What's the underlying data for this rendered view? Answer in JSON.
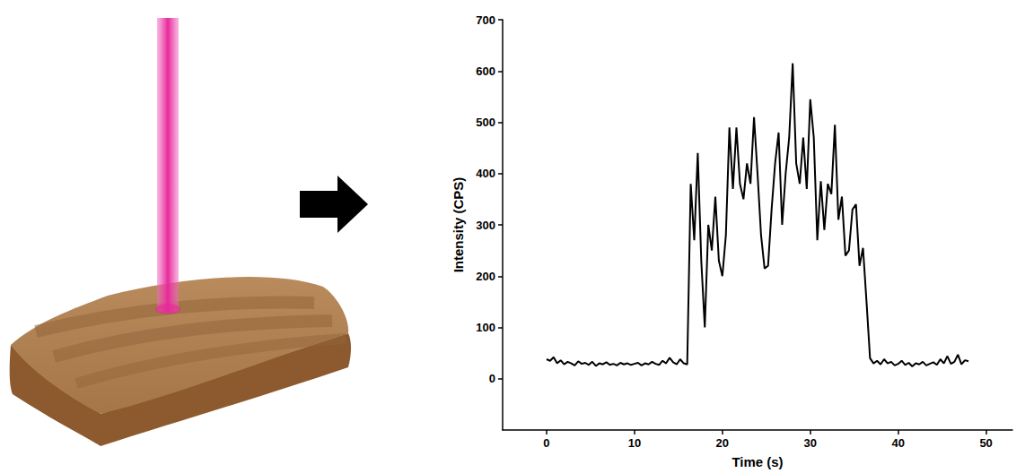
{
  "chart_data": {
    "type": "line",
    "xlabel": "Time (s)",
    "ylabel": "Intensity (CPS)",
    "color": "#000000",
    "x": [
      0,
      0.4,
      0.8,
      1.2,
      1.6,
      2,
      2.4,
      2.8,
      3.2,
      3.6,
      4,
      4.4,
      4.8,
      5.2,
      5.6,
      6,
      6.4,
      6.8,
      7.2,
      7.6,
      8,
      8.4,
      8.8,
      9.2,
      9.6,
      10,
      10.4,
      10.8,
      11.2,
      11.6,
      12,
      12.4,
      12.8,
      13.2,
      13.6,
      14,
      14.4,
      14.8,
      15.2,
      15.6,
      16,
      16.4,
      16.8,
      17.2,
      17.6,
      18,
      18.4,
      18.8,
      19.2,
      19.6,
      20,
      20.4,
      20.8,
      21.2,
      21.6,
      22,
      22.4,
      22.8,
      23.2,
      23.6,
      24,
      24.4,
      24.8,
      25.2,
      25.6,
      26,
      26.4,
      26.8,
      27.2,
      27.6,
      28,
      28.4,
      28.8,
      29.2,
      29.6,
      30,
      30.4,
      30.8,
      31.2,
      31.6,
      32,
      32.4,
      32.8,
      33.2,
      33.6,
      34,
      34.4,
      34.8,
      35.2,
      35.6,
      36,
      36.4,
      36.8,
      37.2,
      37.6,
      38,
      38.4,
      38.8,
      39.2,
      39.6,
      40,
      40.4,
      40.8,
      41.2,
      41.6,
      42,
      42.4,
      42.8,
      43.2,
      43.6,
      44,
      44.4,
      44.8,
      45.2,
      45.6,
      46,
      46.4,
      46.8,
      47.2,
      47.6,
      48
    ],
    "values": [
      38,
      35,
      42,
      30,
      36,
      28,
      33,
      30,
      26,
      34,
      29,
      31,
      27,
      33,
      25,
      30,
      28,
      32,
      27,
      29,
      26,
      31,
      28,
      30,
      27,
      29,
      31,
      26,
      30,
      28,
      33,
      29,
      27,
      35,
      30,
      41,
      32,
      28,
      38,
      30,
      28,
      380,
      270,
      440,
      230,
      100,
      300,
      250,
      355,
      230,
      200,
      280,
      490,
      370,
      490,
      380,
      350,
      420,
      380,
      510,
      400,
      280,
      215,
      220,
      330,
      420,
      480,
      300,
      400,
      470,
      615,
      420,
      380,
      470,
      370,
      545,
      470,
      270,
      385,
      290,
      380,
      360,
      495,
      310,
      355,
      240,
      250,
      330,
      340,
      220,
      255,
      150,
      40,
      30,
      35,
      28,
      38,
      30,
      33,
      26,
      29,
      35,
      27,
      31,
      24,
      30,
      28,
      33,
      26,
      29,
      32,
      27,
      38,
      30,
      44,
      29,
      33,
      47,
      28,
      36,
      34
    ],
    "xlim": [
      -5,
      53
    ],
    "xticks": [
      0,
      10,
      20,
      30,
      40,
      50
    ],
    "ylim": [
      -100,
      700
    ],
    "yticks": [
      0,
      100,
      200,
      300,
      400,
      500,
      600,
      700
    ],
    "grid": false
  }
}
